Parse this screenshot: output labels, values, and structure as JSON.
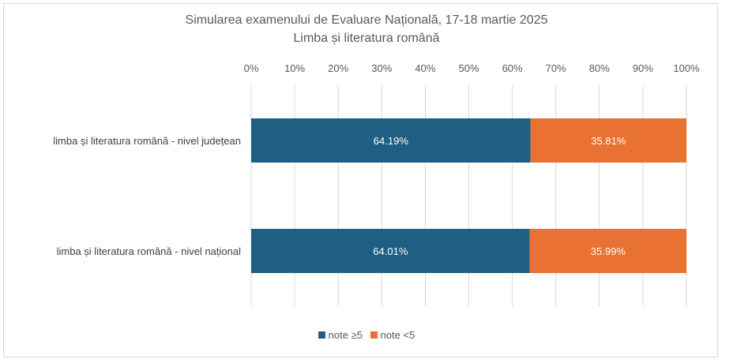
{
  "chart_data": {
    "type": "bar",
    "orientation": "horizontal",
    "stacked": "percent",
    "title": "Simularea examenului de Evaluare Națională, 17-18 martie 2025",
    "subtitle": "Limba și literatura română",
    "categories": [
      "limba și literatura română - nivel județean",
      "limba și literatura română - nivel național"
    ],
    "series": [
      {
        "name": "note ≥5",
        "color": "#1f5f82",
        "values": [
          64.19,
          64.01
        ],
        "labels": [
          "64.19%",
          "64.01%"
        ]
      },
      {
        "name": "note <5",
        "color": "#e97132",
        "values": [
          35.81,
          35.99
        ],
        "labels": [
          "35.81%",
          "35.99%"
        ]
      }
    ],
    "xlim": [
      0,
      100
    ],
    "xticks": [
      "0%",
      "10%",
      "20%",
      "30%",
      "40%",
      "50%",
      "60%",
      "70%",
      "80%",
      "90%",
      "100%"
    ],
    "xaxis_position": "top",
    "grid": true,
    "legend_position": "bottom"
  }
}
